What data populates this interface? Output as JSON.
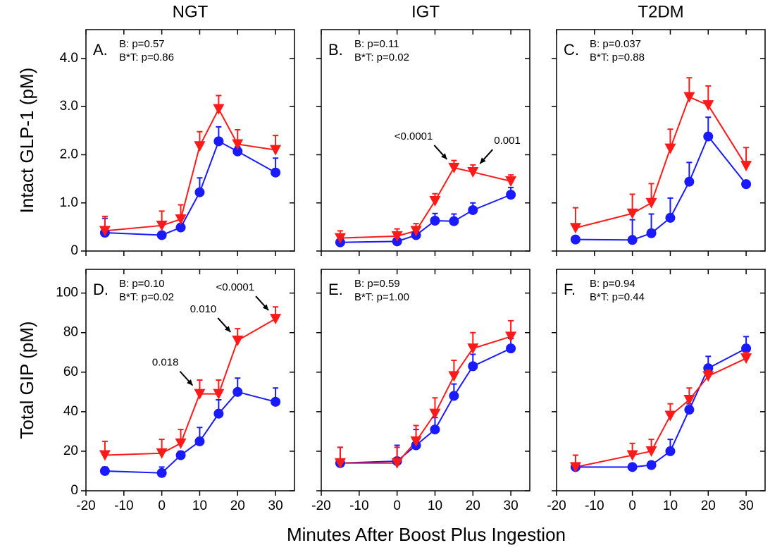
{
  "figure": {
    "xlabel": "Minutes After Boost Plus Ingestion"
  },
  "chart_data": [
    {
      "type": "line",
      "title": "NGT",
      "label": "A.",
      "ylabel": "Intact GLP-1 (pM)",
      "stats": [
        {
          "text": "B: p=0.57",
          "color": "#000000"
        },
        {
          "text": "B*T: p=0.86",
          "color": "#000000"
        }
      ],
      "x": [
        -15,
        0,
        5,
        10,
        15,
        20,
        30
      ],
      "xlim": [
        -20,
        35
      ],
      "xticks": [
        -20,
        -10,
        0,
        10,
        20,
        30
      ],
      "ylim": [
        0,
        4.6
      ],
      "yticks": [
        0,
        {
          "value": 1,
          "label": "1.0"
        },
        {
          "value": 2,
          "label": "2.0"
        },
        {
          "value": 3,
          "label": "3.0"
        },
        {
          "value": 4,
          "label": "4.0"
        }
      ],
      "series": [
        {
          "color": "#1a1aff",
          "marker": "circle",
          "values": [
            0.38,
            0.33,
            0.49,
            1.22,
            2.28,
            2.07,
            1.63
          ],
          "errors": [
            0.3,
            0.05,
            0.05,
            0.3,
            0.3,
            0.1,
            0.3
          ]
        },
        {
          "color": "#ff1a1a",
          "marker": "triangle-down",
          "values": [
            0.42,
            0.53,
            0.66,
            2.18,
            2.95,
            2.22,
            2.1
          ],
          "errors": [
            0.3,
            0.3,
            0.3,
            0.3,
            0.28,
            0.3,
            0.3
          ]
        }
      ]
    },
    {
      "type": "line",
      "title": "IGT",
      "label": "B.",
      "stats": [
        {
          "text": "B: p=0.11",
          "color": "#000000"
        },
        {
          "text": "B*T: p=0.02",
          "color": "#ff0000"
        }
      ],
      "x": [
        -15,
        0,
        5,
        10,
        15,
        20,
        30
      ],
      "xlim": [
        -20,
        35
      ],
      "xticks": [
        -20,
        -10,
        0,
        10,
        20,
        30
      ],
      "ylim": [
        0,
        4.6
      ],
      "yticks": [
        0,
        1,
        2,
        3,
        4
      ],
      "series": [
        {
          "color": "#1a1aff",
          "marker": "circle",
          "values": [
            0.18,
            0.2,
            0.33,
            0.63,
            0.62,
            0.85,
            1.17
          ],
          "errors": [
            0.05,
            0.05,
            0.1,
            0.15,
            0.15,
            0.15,
            0.15
          ]
        },
        {
          "color": "#ff1a1a",
          "marker": "triangle-down",
          "values": [
            0.27,
            0.31,
            0.42,
            1.04,
            1.73,
            1.64,
            1.45
          ],
          "errors": [
            0.15,
            0.15,
            0.15,
            0.15,
            0.15,
            0.15,
            0.13
          ],
          "notes": [
            null,
            null,
            null,
            null,
            "<0.0001",
            "0.001",
            null
          ]
        }
      ]
    },
    {
      "type": "line",
      "title": "T2DM",
      "label": "C.",
      "stats": [
        {
          "text": "B: p=0.037",
          "color": "#ff0000"
        },
        {
          "text": "B*T: p=0.88",
          "color": "#000000"
        }
      ],
      "x": [
        -15,
        0,
        5,
        10,
        15,
        20,
        30
      ],
      "xlim": [
        -20,
        35
      ],
      "xticks": [
        -20,
        -10,
        0,
        10,
        20,
        30
      ],
      "ylim": [
        0,
        4.6
      ],
      "yticks": [
        0,
        1,
        2,
        3,
        4
      ],
      "series": [
        {
          "color": "#1a1aff",
          "marker": "circle",
          "values": [
            0.24,
            0.23,
            0.37,
            0.69,
            1.44,
            2.38,
            1.39
          ],
          "errors": [
            0.05,
            0.42,
            0.4,
            0.41,
            0.4,
            0.4,
            0.05
          ]
        },
        {
          "color": "#ff1a1a",
          "marker": "triangle-down",
          "values": [
            0.48,
            0.78,
            1.0,
            2.13,
            3.2,
            3.03,
            1.77
          ],
          "errors": [
            0.42,
            0.4,
            0.4,
            0.4,
            0.4,
            0.4,
            0.38
          ]
        }
      ]
    },
    {
      "type": "line",
      "label": "D.",
      "ylabel": "Total GIP (pM)",
      "stats": [
        {
          "text": "B: p=0.10",
          "color": "#000000"
        },
        {
          "text": "B*T: p=0.02",
          "color": "#ff0000"
        }
      ],
      "x": [
        -15,
        0,
        5,
        10,
        15,
        20,
        30
      ],
      "xlim": [
        -20,
        35
      ],
      "xticks": [
        -20,
        -10,
        0,
        10,
        20,
        30
      ],
      "ylim": [
        0,
        112
      ],
      "yticks": [
        0,
        20,
        40,
        60,
        80,
        100
      ],
      "series": [
        {
          "color": "#1a1aff",
          "marker": "circle",
          "values": [
            10,
            9,
            18,
            25,
            39,
            50,
            45
          ],
          "errors": [
            2,
            3,
            2,
            7,
            7,
            7,
            7
          ]
        },
        {
          "color": "#ff1a1a",
          "marker": "triangle-down",
          "values": [
            18,
            19,
            24,
            49,
            49,
            76,
            87
          ],
          "errors": [
            7,
            7,
            7,
            7,
            7,
            6,
            6
          ],
          "notes": [
            null,
            null,
            null,
            "0.018",
            null,
            "0.010",
            "<0.0001"
          ]
        }
      ]
    },
    {
      "type": "line",
      "label": "E.",
      "stats": [
        {
          "text": "B: p=0.59",
          "color": "#000000"
        },
        {
          "text": "B*T: p=1.00",
          "color": "#000000"
        }
      ],
      "x": [
        -15,
        0,
        5,
        10,
        15,
        20,
        30
      ],
      "xlim": [
        -20,
        35
      ],
      "xticks": [
        -20,
        -10,
        0,
        10,
        20,
        30
      ],
      "ylim": [
        0,
        112
      ],
      "yticks": [
        0,
        20,
        40,
        60,
        80,
        100
      ],
      "series": [
        {
          "color": "#1a1aff",
          "marker": "circle",
          "values": [
            14,
            15,
            23,
            31,
            48,
            63,
            72
          ],
          "errors": [
            8,
            8,
            8,
            6,
            6,
            6,
            5
          ]
        },
        {
          "color": "#ff1a1a",
          "marker": "triangle-down",
          "values": [
            14,
            14,
            25,
            39,
            58,
            72,
            78
          ],
          "errors": [
            8,
            8,
            8,
            8,
            8,
            8,
            8
          ]
        }
      ]
    },
    {
      "type": "line",
      "label": "F.",
      "stats": [
        {
          "text": "B: p=0.94",
          "color": "#000000"
        },
        {
          "text": "B*T: p=0.44",
          "color": "#000000"
        }
      ],
      "x": [
        -15,
        0,
        5,
        10,
        15,
        20,
        30
      ],
      "xlim": [
        -20,
        35
      ],
      "xticks": [
        -20,
        -10,
        0,
        10,
        20,
        30
      ],
      "ylim": [
        0,
        112
      ],
      "yticks": [
        0,
        20,
        40,
        60,
        80,
        100
      ],
      "series": [
        {
          "color": "#1a1aff",
          "marker": "circle",
          "values": [
            12,
            12,
            13,
            20,
            41,
            62,
            72
          ],
          "errors": [
            6,
            0,
            0,
            6,
            3,
            6,
            6
          ]
        },
        {
          "color": "#ff1a1a",
          "marker": "triangle-down",
          "values": [
            12,
            18,
            20,
            38,
            46,
            58,
            67
          ],
          "errors": [
            6,
            6,
            6,
            6,
            6,
            3,
            3
          ]
        }
      ]
    }
  ]
}
